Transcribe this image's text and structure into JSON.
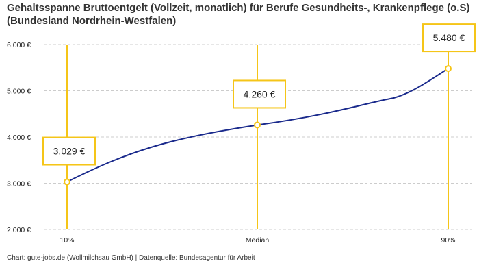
{
  "chart_data": {
    "type": "line",
    "title": "Gehaltsspanne Bruttoentgelt (Vollzeit, monatlich) für Berufe Gesundheits-, Krankenpflege (o.S) (Bundesland Nordrhein-Westfalen)",
    "categories": [
      "10%",
      "Median",
      "90%"
    ],
    "values": [
      3029,
      4260,
      5480
    ],
    "data_labels": [
      "3.029 €",
      "4.260 €",
      "5.480 €"
    ],
    "ylim": [
      2000,
      6000
    ],
    "yticks": [
      2000,
      3000,
      4000,
      5000,
      6000
    ],
    "ytick_labels": [
      "2.000 €",
      "3.000 €",
      "4.000 €",
      "5.000 €",
      "6.000 €"
    ],
    "xlabel": "",
    "ylabel": "",
    "grid": true,
    "colors": {
      "line": "#1a2a8c",
      "marker": "#f5c518",
      "grid": "#cccccc"
    }
  },
  "source": "Chart: gute-jobs.de (Wollmilchsau GmbH) | Datenquelle: Bundesagentur für Arbeit"
}
